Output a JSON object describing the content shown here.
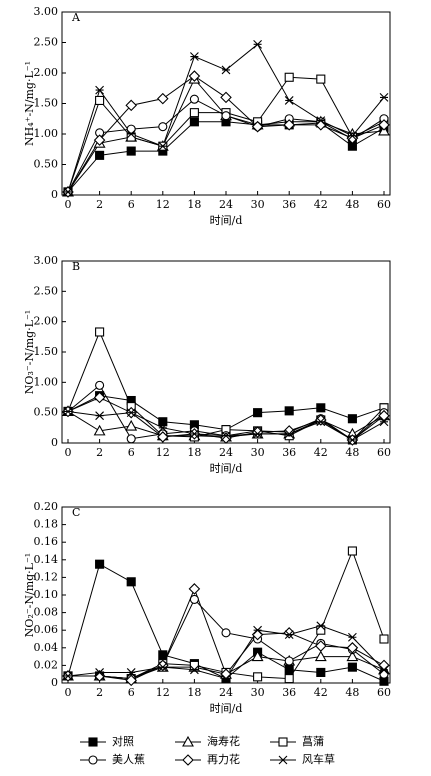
{
  "chart_data": [
    {
      "type": "line",
      "panel_label": "A",
      "ylabel": "NH₄⁺-N/mg·L⁻¹",
      "xlabel": "时间/d",
      "categories": [
        "0",
        "2",
        "6",
        "12",
        "18",
        "24",
        "30",
        "36",
        "42",
        "48",
        "60"
      ],
      "ylim": [
        0,
        3
      ],
      "yticks": [
        0,
        {
          "value": 0.5,
          "label": "0.50"
        },
        {
          "value": 1,
          "label": "1.00"
        },
        {
          "value": 1.5,
          "label": "1.50"
        },
        {
          "value": 2,
          "label": "2.00"
        },
        {
          "value": 2.5,
          "label": "2.50"
        },
        {
          "value": 3,
          "label": "3.00"
        }
      ],
      "series": [
        {
          "marker": "filled-square",
          "color": "#000",
          "values": [
            0.05,
            0.65,
            0.72,
            0.72,
            1.2,
            1.2,
            1.15,
            1.15,
            1.18,
            0.8,
            1.1
          ]
        },
        {
          "marker": "triangle",
          "color": "#000",
          "values": [
            0.05,
            0.85,
            0.95,
            0.8,
            1.9,
            1.3,
            1.15,
            1.2,
            1.2,
            1.0,
            1.05
          ]
        },
        {
          "marker": "square",
          "color": "#000",
          "values": [
            0.05,
            1.55,
            0.95,
            0.8,
            1.35,
            1.35,
            1.2,
            1.93,
            1.9,
            0.95,
            1.2
          ]
        },
        {
          "marker": "circle",
          "color": "#000",
          "values": [
            0.05,
            1.02,
            1.08,
            1.12,
            1.57,
            1.3,
            1.12,
            1.25,
            1.2,
            0.92,
            1.25
          ]
        },
        {
          "marker": "diamond",
          "color": "#000",
          "values": [
            0.05,
            0.9,
            1.47,
            1.58,
            1.95,
            1.6,
            1.12,
            1.15,
            1.15,
            0.93,
            1.15
          ]
        },
        {
          "marker": "star",
          "color": "#000",
          "values": [
            0.05,
            1.72,
            1.0,
            0.8,
            2.27,
            2.05,
            2.47,
            1.55,
            1.22,
            0.97,
            1.6
          ]
        }
      ]
    },
    {
      "type": "line",
      "panel_label": "B",
      "ylabel": "NO₃⁻-N/mg·L⁻¹",
      "xlabel": "时间/d",
      "categories": [
        "0",
        "2",
        "6",
        "12",
        "18",
        "24",
        "30",
        "36",
        "42",
        "48",
        "60"
      ],
      "ylim": [
        0,
        3
      ],
      "yticks": [
        0,
        {
          "value": 0.5,
          "label": "0.50"
        },
        {
          "value": 1,
          "label": "1.00"
        },
        {
          "value": 1.5,
          "label": "1.50"
        },
        {
          "value": 2,
          "label": "2.00"
        },
        {
          "value": 2.5,
          "label": "2.50"
        },
        {
          "value": 3,
          "label": "3.00"
        }
      ],
      "series": [
        {
          "marker": "filled-square",
          "color": "#000",
          "values": [
            0.52,
            0.78,
            0.7,
            0.35,
            0.3,
            0.22,
            0.5,
            0.53,
            0.58,
            0.4,
            0.58
          ]
        },
        {
          "marker": "triangle",
          "color": "#000",
          "values": [
            0.52,
            0.2,
            0.28,
            0.12,
            0.12,
            0.1,
            0.15,
            0.15,
            0.38,
            0.15,
            0.45
          ]
        },
        {
          "marker": "square",
          "color": "#000",
          "values": [
            0.52,
            1.83,
            0.6,
            0.12,
            0.1,
            0.22,
            0.2,
            0.12,
            0.38,
            0.05,
            0.58
          ]
        },
        {
          "marker": "circle",
          "color": "#000",
          "values": [
            0.52,
            0.95,
            0.07,
            0.15,
            0.2,
            0.12,
            0.2,
            0.18,
            0.4,
            0.05,
            0.5
          ]
        },
        {
          "marker": "diamond",
          "color": "#000",
          "values": [
            0.52,
            0.75,
            0.5,
            0.1,
            0.15,
            0.08,
            0.18,
            0.2,
            0.38,
            0.05,
            0.45
          ]
        },
        {
          "marker": "star",
          "color": "#000",
          "values": [
            0.52,
            0.45,
            0.5,
            0.25,
            0.15,
            0.12,
            0.15,
            0.15,
            0.35,
            0.05,
            0.35
          ]
        }
      ]
    },
    {
      "type": "line",
      "panel_label": "C",
      "ylabel": "NO₂⁻-N/mg·L⁻¹",
      "xlabel": "时间/d",
      "categories": [
        "0",
        "2",
        "6",
        "12",
        "18",
        "24",
        "30",
        "36",
        "42",
        "48",
        "60"
      ],
      "ylim": [
        0,
        0.2
      ],
      "yticks": [
        0,
        {
          "value": 0.02,
          "label": "0.02"
        },
        {
          "value": 0.04,
          "label": "0.04"
        },
        {
          "value": 0.06,
          "label": "0.06"
        },
        {
          "value": 0.08,
          "label": "0.08"
        },
        {
          "value": 0.1,
          "label": "0.10"
        },
        {
          "value": 0.12,
          "label": "0.12"
        },
        {
          "value": 0.14,
          "label": "0.14"
        },
        {
          "value": 0.16,
          "label": "0.16"
        },
        {
          "value": 0.18,
          "label": "0.18"
        },
        {
          "value": 0.2,
          "label": "0.20"
        }
      ],
      "series": [
        {
          "marker": "filled-square",
          "color": "#000",
          "values": [
            0.008,
            0.135,
            0.115,
            0.032,
            0.022,
            0.005,
            0.035,
            0.015,
            0.012,
            0.018,
            0.002
          ]
        },
        {
          "marker": "triangle",
          "color": "#000",
          "values": [
            0.008,
            0.008,
            0.005,
            0.018,
            0.018,
            0.01,
            0.03,
            0.025,
            0.03,
            0.03,
            0.015
          ]
        },
        {
          "marker": "square",
          "color": "#000",
          "values": [
            0.008,
            0.008,
            0.005,
            0.022,
            0.02,
            0.012,
            0.007,
            0.005,
            0.06,
            0.15,
            0.05
          ]
        },
        {
          "marker": "circle",
          "color": "#000",
          "values": [
            0.008,
            0.008,
            0.005,
            0.02,
            0.095,
            0.057,
            0.05,
            0.025,
            0.045,
            0.038,
            0.01
          ]
        },
        {
          "marker": "diamond",
          "color": "#000",
          "values": [
            0.008,
            0.008,
            0.003,
            0.02,
            0.107,
            0.01,
            0.055,
            0.057,
            0.042,
            0.04,
            0.02
          ]
        },
        {
          "marker": "star",
          "color": "#000",
          "values": [
            0.008,
            0.012,
            0.012,
            0.018,
            0.015,
            0.005,
            0.06,
            0.055,
            0.065,
            0.052,
            0.015
          ]
        }
      ]
    }
  ],
  "legend": [
    "对照",
    "海寿花",
    "菖蒲",
    "美人蕉",
    "再力花",
    "风车草"
  ]
}
